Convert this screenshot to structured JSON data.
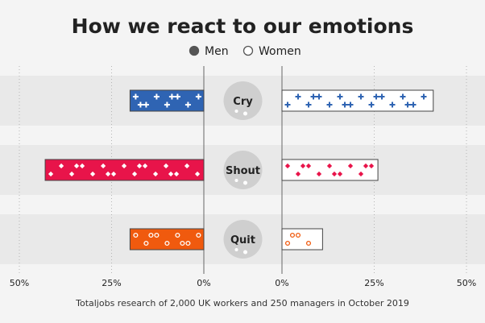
{
  "chart_data": {
    "type": "bar",
    "title": "How we react to our emotions",
    "source": "Totaljobs research of 2,000 UK workers and 250 managers in October 2019",
    "categories": [
      "Cry",
      "Shout",
      "Quit"
    ],
    "series": [
      {
        "name": "Men",
        "values": [
          20,
          43,
          20
        ]
      },
      {
        "name": "Women",
        "values": [
          41,
          26,
          11
        ]
      }
    ],
    "xlim": [
      0,
      50
    ],
    "ticks": [
      {
        "value": 50,
        "label": "50%"
      },
      {
        "value": 25,
        "label": "25%"
      },
      {
        "value": 0,
        "label": "0%"
      }
    ],
    "category_colors": {
      "Cry": "#2f64b3",
      "Shout": "#e8144a",
      "Quit": "#f05a0e"
    },
    "legend_position": "top-center",
    "grid": true
  }
}
